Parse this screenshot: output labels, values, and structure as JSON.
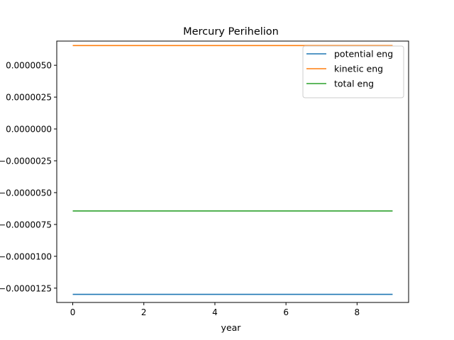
{
  "chart_data": {
    "type": "line",
    "title": "Mercury Perihelion",
    "xlabel": "year",
    "ylabel": "",
    "xlim": [
      -0.45,
      9.45
    ],
    "ylim": [
      -1.3625e-05,
      6.9e-06
    ],
    "x_ticks": [
      0,
      2,
      4,
      6,
      8
    ],
    "x_tick_labels": [
      "0",
      "2",
      "4",
      "6",
      "8"
    ],
    "y_ticks": [
      5e-06,
      2.5e-06,
      0.0,
      -2.5e-06,
      -5e-06,
      -7.5e-06,
      -1e-05,
      -1.25e-05
    ],
    "y_tick_labels": [
      "0.0000050",
      "0.0000025",
      "0.0000000",
      "−0.0000025",
      "−0.0000050",
      "−0.0000075",
      "−0.0000100",
      "−0.0000125"
    ],
    "grid": false,
    "legend_position": "top-right",
    "x": [
      0,
      9
    ],
    "series": [
      {
        "name": "potential eng",
        "color": "#1f77b4",
        "values": [
          -1.299e-05,
          -1.299e-05
        ]
      },
      {
        "name": "kinetic eng",
        "color": "#ff7f0e",
        "values": [
          6.55e-06,
          6.55e-06
        ]
      },
      {
        "name": "total eng",
        "color": "#2ca02c",
        "values": [
          -6.44e-06,
          -6.44e-06
        ]
      }
    ]
  }
}
